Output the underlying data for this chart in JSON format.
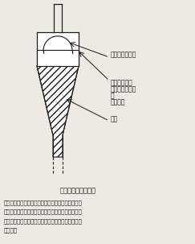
{
  "title_fig": "図１　水素発生装置",
  "caption_lines": [
    "トリチウムを含む水素化ホウ素ナトリウム溶液に，",
    "塩酸を加えることで放射性水素ガスを発生させた．",
    "発生したガスは二重ゴム栓を通して採取し，実験に",
    "用いた．"
  ],
  "label_gas": "放射性水素ガス",
  "label_solution_line1": "水素化ホウ素",
  "label_solution_line2": "ナトリウム溶液",
  "label_solution_line3": "＋",
  "label_solution_line4": "１Ｎ塩酸",
  "label_mercury": "水銀",
  "bg_color": "#ede9e3",
  "line_color": "#1a1a1a",
  "text_color": "#1a1a1a"
}
